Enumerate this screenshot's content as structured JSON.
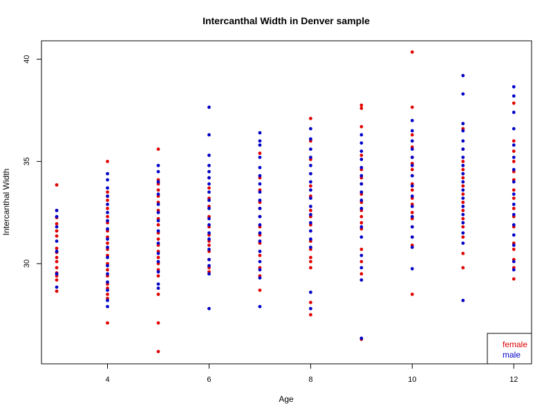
{
  "chart_data": {
    "type": "scatter",
    "title": "Intercanthal Width in Denver sample",
    "xlabel": "Age",
    "ylabel": "Intercanthal Width",
    "xlim": [
      2.7,
      12.35
    ],
    "ylim": [
      25.1,
      40.9
    ],
    "x_ticks": [
      4,
      6,
      8,
      10,
      12
    ],
    "y_ticks": [
      30,
      35,
      40
    ],
    "legend": {
      "position": "bottom-right"
    },
    "series": [
      {
        "name": "female",
        "color": "#e00000",
        "points": [
          [
            3,
            33.85
          ],
          [
            3,
            32.6
          ],
          [
            3,
            32.25
          ],
          [
            3,
            31.95
          ],
          [
            3,
            31.6
          ],
          [
            3,
            31.35
          ],
          [
            3,
            30.75
          ],
          [
            3,
            30.55
          ],
          [
            3,
            30.3
          ],
          [
            3,
            30.1
          ],
          [
            3,
            29.8
          ],
          [
            3,
            29.55
          ],
          [
            3,
            29.4
          ],
          [
            3,
            29.2
          ],
          [
            3,
            28.65
          ],
          [
            4,
            35.0
          ],
          [
            4,
            33.5
          ],
          [
            4,
            33.3
          ],
          [
            4,
            33.1
          ],
          [
            4,
            32.7
          ],
          [
            4,
            32.3
          ],
          [
            4,
            32.0
          ],
          [
            4,
            31.6
          ],
          [
            4,
            31.3
          ],
          [
            4,
            31.0
          ],
          [
            4,
            30.7
          ],
          [
            4,
            30.4
          ],
          [
            4,
            30.0
          ],
          [
            4,
            29.7
          ],
          [
            4,
            29.4
          ],
          [
            4,
            29.0
          ],
          [
            4,
            28.8
          ],
          [
            4,
            28.5
          ],
          [
            4,
            28.3
          ],
          [
            4,
            27.1
          ],
          [
            5,
            35.6
          ],
          [
            5,
            34.1
          ],
          [
            5,
            33.9
          ],
          [
            5,
            33.6
          ],
          [
            5,
            33.3
          ],
          [
            5,
            33.0
          ],
          [
            5,
            32.6
          ],
          [
            5,
            32.2
          ],
          [
            5,
            31.9
          ],
          [
            5,
            31.5
          ],
          [
            5,
            31.2
          ],
          [
            5,
            30.9
          ],
          [
            5,
            30.6
          ],
          [
            5,
            30.3
          ],
          [
            5,
            30.0
          ],
          [
            5,
            29.7
          ],
          [
            5,
            29.4
          ],
          [
            5,
            28.5
          ],
          [
            5,
            27.1
          ],
          [
            5,
            25.7
          ],
          [
            6,
            34.2
          ],
          [
            6,
            33.7
          ],
          [
            6,
            33.2
          ],
          [
            6,
            32.8
          ],
          [
            6,
            32.3
          ],
          [
            6,
            31.8
          ],
          [
            6,
            31.4
          ],
          [
            6,
            31.1
          ],
          [
            6,
            30.9
          ],
          [
            6,
            30.6
          ],
          [
            6,
            30.2
          ],
          [
            6,
            29.8
          ],
          [
            6,
            29.6
          ],
          [
            7,
            35.4
          ],
          [
            7,
            34.2
          ],
          [
            7,
            33.6
          ],
          [
            7,
            33.0
          ],
          [
            7,
            32.7
          ],
          [
            7,
            32.3
          ],
          [
            7,
            31.8
          ],
          [
            7,
            31.4
          ],
          [
            7,
            31.0
          ],
          [
            7,
            30.4
          ],
          [
            7,
            29.8
          ],
          [
            7,
            29.4
          ],
          [
            7,
            28.7
          ],
          [
            8,
            37.1
          ],
          [
            8,
            36.0
          ],
          [
            8,
            35.1
          ],
          [
            8,
            33.8
          ],
          [
            8,
            33.3
          ],
          [
            8,
            32.6
          ],
          [
            8,
            32.3
          ],
          [
            8,
            31.9
          ],
          [
            8,
            31.1
          ],
          [
            8,
            30.7
          ],
          [
            8,
            30.3
          ],
          [
            8,
            30.1
          ],
          [
            8,
            29.8
          ],
          [
            8,
            28.1
          ],
          [
            8,
            27.5
          ],
          [
            9,
            37.75
          ],
          [
            9,
            37.6
          ],
          [
            9,
            36.7
          ],
          [
            9,
            35.3
          ],
          [
            9,
            34.6
          ],
          [
            9,
            34.2
          ],
          [
            9,
            33.9
          ],
          [
            9,
            33.4
          ],
          [
            9,
            33.0
          ],
          [
            9,
            32.6
          ],
          [
            9,
            32.3
          ],
          [
            9,
            32.0
          ],
          [
            9,
            31.7
          ],
          [
            9,
            30.7
          ],
          [
            9,
            30.1
          ],
          [
            9,
            29.5
          ],
          [
            9,
            26.3
          ],
          [
            10,
            40.35
          ],
          [
            10,
            37.65
          ],
          [
            10,
            36.3
          ],
          [
            10,
            35.7
          ],
          [
            10,
            35.2
          ],
          [
            10,
            34.9
          ],
          [
            10,
            34.6
          ],
          [
            10,
            34.3
          ],
          [
            10,
            33.9
          ],
          [
            10,
            33.6
          ],
          [
            10,
            33.2
          ],
          [
            10,
            32.9
          ],
          [
            10,
            32.5
          ],
          [
            10,
            32.2
          ],
          [
            10,
            31.8
          ],
          [
            10,
            31.3
          ],
          [
            10,
            30.9
          ],
          [
            10,
            28.5
          ],
          [
            11,
            36.6
          ],
          [
            11,
            35.6
          ],
          [
            11,
            35.0
          ],
          [
            11,
            34.6
          ],
          [
            11,
            34.2
          ],
          [
            11,
            33.8
          ],
          [
            11,
            33.4
          ],
          [
            11,
            33.0
          ],
          [
            11,
            32.6
          ],
          [
            11,
            32.2
          ],
          [
            11,
            31.8
          ],
          [
            11,
            31.3
          ],
          [
            11,
            30.5
          ],
          [
            11,
            29.8
          ],
          [
            12,
            37.85
          ],
          [
            12,
            36.0
          ],
          [
            12,
            35.5
          ],
          [
            12,
            35.0
          ],
          [
            12,
            34.5
          ],
          [
            12,
            34.1
          ],
          [
            12,
            33.6
          ],
          [
            12,
            33.2
          ],
          [
            12,
            32.7
          ],
          [
            12,
            32.3
          ],
          [
            12,
            31.8
          ],
          [
            12,
            31.0
          ],
          [
            12,
            30.7
          ],
          [
            12,
            30.2
          ],
          [
            12,
            29.8
          ],
          [
            12,
            29.25
          ]
        ]
      },
      {
        "name": "male",
        "color": "#0000c8",
        "points": [
          [
            3,
            32.6
          ],
          [
            3,
            32.3
          ],
          [
            3,
            31.8
          ],
          [
            3,
            31.1
          ],
          [
            3,
            30.6
          ],
          [
            3,
            29.5
          ],
          [
            3,
            28.85
          ],
          [
            4,
            34.4
          ],
          [
            4,
            34.1
          ],
          [
            4,
            33.7
          ],
          [
            4,
            33.3
          ],
          [
            4,
            32.9
          ],
          [
            4,
            32.5
          ],
          [
            4,
            32.1
          ],
          [
            4,
            31.7
          ],
          [
            4,
            31.2
          ],
          [
            4,
            30.8
          ],
          [
            4,
            30.3
          ],
          [
            4,
            29.9
          ],
          [
            4,
            29.5
          ],
          [
            4,
            29.1
          ],
          [
            4,
            28.7
          ],
          [
            4,
            28.2
          ],
          [
            4,
            27.9
          ],
          [
            5,
            34.8
          ],
          [
            5,
            34.5
          ],
          [
            5,
            34.0
          ],
          [
            5,
            33.4
          ],
          [
            5,
            32.9
          ],
          [
            5,
            32.5
          ],
          [
            5,
            32.1
          ],
          [
            5,
            31.6
          ],
          [
            5,
            31.0
          ],
          [
            5,
            30.5
          ],
          [
            5,
            30.1
          ],
          [
            5,
            29.6
          ],
          [
            5,
            29.0
          ],
          [
            5,
            28.8
          ],
          [
            6,
            37.65
          ],
          [
            6,
            36.3
          ],
          [
            6,
            35.3
          ],
          [
            6,
            34.8
          ],
          [
            6,
            34.5
          ],
          [
            6,
            34.2
          ],
          [
            6,
            33.9
          ],
          [
            6,
            33.5
          ],
          [
            6,
            33.1
          ],
          [
            6,
            32.7
          ],
          [
            6,
            32.2
          ],
          [
            6,
            31.9
          ],
          [
            6,
            31.5
          ],
          [
            6,
            31.2
          ],
          [
            6,
            30.7
          ],
          [
            6,
            30.2
          ],
          [
            6,
            29.9
          ],
          [
            6,
            29.5
          ],
          [
            6,
            27.8
          ],
          [
            7,
            36.4
          ],
          [
            7,
            36.0
          ],
          [
            7,
            35.8
          ],
          [
            7,
            35.2
          ],
          [
            7,
            34.7
          ],
          [
            7,
            34.3
          ],
          [
            7,
            33.9
          ],
          [
            7,
            33.5
          ],
          [
            7,
            33.1
          ],
          [
            7,
            32.7
          ],
          [
            7,
            32.3
          ],
          [
            7,
            31.9
          ],
          [
            7,
            31.5
          ],
          [
            7,
            31.1
          ],
          [
            7,
            30.6
          ],
          [
            7,
            30.1
          ],
          [
            7,
            29.7
          ],
          [
            7,
            29.3
          ],
          [
            7,
            27.9
          ],
          [
            8,
            36.6
          ],
          [
            8,
            36.1
          ],
          [
            8,
            35.6
          ],
          [
            8,
            35.2
          ],
          [
            8,
            34.8
          ],
          [
            8,
            34.4
          ],
          [
            8,
            34.0
          ],
          [
            8,
            33.6
          ],
          [
            8,
            33.2
          ],
          [
            8,
            32.8
          ],
          [
            8,
            32.4
          ],
          [
            8,
            32.0
          ],
          [
            8,
            31.6
          ],
          [
            8,
            31.2
          ],
          [
            8,
            30.8
          ],
          [
            8,
            28.6
          ],
          [
            8,
            27.8
          ],
          [
            9,
            36.3
          ],
          [
            9,
            35.9
          ],
          [
            9,
            35.5
          ],
          [
            9,
            35.1
          ],
          [
            9,
            34.7
          ],
          [
            9,
            34.3
          ],
          [
            9,
            33.9
          ],
          [
            9,
            33.5
          ],
          [
            9,
            33.1
          ],
          [
            9,
            32.7
          ],
          [
            9,
            31.8
          ],
          [
            9,
            31.3
          ],
          [
            9,
            30.4
          ],
          [
            9,
            29.8
          ],
          [
            9,
            29.2
          ],
          [
            9,
            26.35
          ],
          [
            10,
            37.0
          ],
          [
            10,
            36.5
          ],
          [
            10,
            36.0
          ],
          [
            10,
            35.6
          ],
          [
            10,
            35.2
          ],
          [
            10,
            34.8
          ],
          [
            10,
            34.3
          ],
          [
            10,
            33.8
          ],
          [
            10,
            33.3
          ],
          [
            10,
            32.8
          ],
          [
            10,
            32.3
          ],
          [
            10,
            31.8
          ],
          [
            10,
            31.3
          ],
          [
            10,
            30.8
          ],
          [
            10,
            29.75
          ],
          [
            11,
            39.2
          ],
          [
            11,
            38.3
          ],
          [
            11,
            36.85
          ],
          [
            11,
            36.5
          ],
          [
            11,
            36.0
          ],
          [
            11,
            35.6
          ],
          [
            11,
            35.2
          ],
          [
            11,
            34.8
          ],
          [
            11,
            34.4
          ],
          [
            11,
            34.0
          ],
          [
            11,
            33.6
          ],
          [
            11,
            33.2
          ],
          [
            11,
            32.8
          ],
          [
            11,
            32.4
          ],
          [
            11,
            32.0
          ],
          [
            11,
            31.5
          ],
          [
            11,
            31.0
          ],
          [
            11,
            28.2
          ],
          [
            12,
            38.65
          ],
          [
            12,
            38.2
          ],
          [
            12,
            37.4
          ],
          [
            12,
            36.6
          ],
          [
            12,
            35.8
          ],
          [
            12,
            35.2
          ],
          [
            12,
            34.6
          ],
          [
            12,
            34.0
          ],
          [
            12,
            33.4
          ],
          [
            12,
            32.9
          ],
          [
            12,
            32.4
          ],
          [
            12,
            31.9
          ],
          [
            12,
            31.4
          ],
          [
            12,
            30.9
          ],
          [
            12,
            30.1
          ],
          [
            12,
            29.7
          ]
        ]
      }
    ]
  }
}
